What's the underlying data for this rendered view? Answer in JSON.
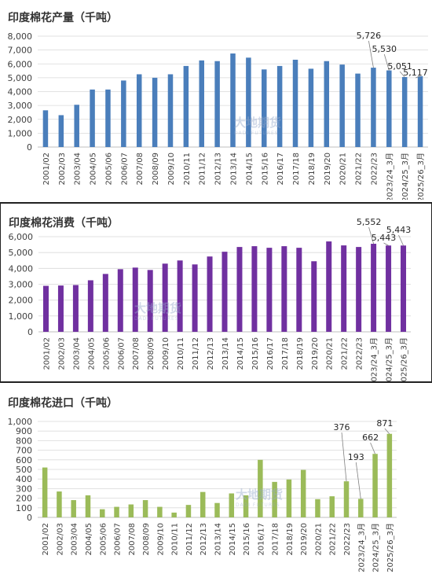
{
  "colors": {
    "production": "#4a7ebb",
    "consumption": "#7030a0",
    "imports": "#9bbb59",
    "grid": "#d9d9d9",
    "text": "#404040"
  },
  "watermark": {
    "text": "大地期货",
    "sub": "DADI FUTURES"
  },
  "chart_data": [
    {
      "type": "bar",
      "title": "印度棉花产量（千吨）",
      "categories": [
        "2001/02",
        "2002/03",
        "2003/04",
        "2004/05",
        "2005/06",
        "2006/07",
        "2007/08",
        "2008/09",
        "2009/10",
        "2010/11",
        "2011/12",
        "2012/13",
        "2013/14",
        "2014/15",
        "2015/16",
        "2016/17",
        "2017/18",
        "2018/19",
        "2019/20",
        "2020/21",
        "2021/22",
        "2022/23",
        "2023/24_3月",
        "2024/25_3月",
        "2025/26_3月"
      ],
      "values": [
        2650,
        2300,
        3050,
        4150,
        4150,
        4800,
        5250,
        5000,
        5250,
        5850,
        6250,
        6200,
        6750,
        6450,
        5600,
        5850,
        6300,
        5650,
        6200,
        5950,
        5300,
        5726,
        5530,
        5051,
        5117
      ],
      "ylim": [
        0,
        8000
      ],
      "yticks": [
        "0",
        "1,000",
        "2,000",
        "3,000",
        "4,000",
        "5,000",
        "6,000",
        "7,000",
        "8,000"
      ],
      "annotations": [
        {
          "index": 21,
          "label": "5,726"
        },
        {
          "index": 22,
          "label": "5,530"
        },
        {
          "index": 23,
          "label": "5,051"
        },
        {
          "index": 24,
          "label": "5,117"
        }
      ],
      "grid": true
    },
    {
      "type": "bar",
      "title": "印度棉花消费（千吨）",
      "categories": [
        "2001/02",
        "2002/03",
        "2003/04",
        "2004/05",
        "2005/06",
        "2006/07",
        "2007/08",
        "2008/09",
        "2009/10",
        "2010/11",
        "2011/12",
        "2012/13",
        "2013/14",
        "2014/15",
        "2015/16",
        "2016/17",
        "2017/18",
        "2018/19",
        "2019/20",
        "2020/21",
        "2021/22",
        "2022/23",
        "2023/24_3月",
        "2024/25_3月",
        "2025/26_3月"
      ],
      "values": [
        2900,
        2920,
        2950,
        3250,
        3650,
        3950,
        4050,
        3900,
        4300,
        4500,
        4250,
        4750,
        5050,
        5350,
        5400,
        5300,
        5400,
        5300,
        4450,
        5700,
        5450,
        5350,
        5552,
        5443,
        5443
      ],
      "ylim": [
        0,
        6000
      ],
      "yticks": [
        "0",
        "1,000",
        "2,000",
        "3,000",
        "4,000",
        "5,000",
        "6,000"
      ],
      "annotations": [
        {
          "index": 22,
          "label": "5,552"
        },
        {
          "index": 23,
          "label": "5,443"
        },
        {
          "index": 24,
          "label": "5,443"
        }
      ],
      "grid": true
    },
    {
      "type": "bar",
      "title": "印度棉花进口（千吨）",
      "categories": [
        "2001/02",
        "2002/03",
        "2003/04",
        "2004/05",
        "2005/06",
        "2006/07",
        "2007/08",
        "2008/09",
        "2009/10",
        "2010/11",
        "2011/12",
        "2012/13",
        "2013/14",
        "2014/15",
        "2015/16",
        "2016/17",
        "2017/18",
        "2018/19",
        "2019/20",
        "2020/21",
        "2021/22",
        "2022/23",
        "2023/24_3月",
        "2024/25_3月",
        "2025/26_3月"
      ],
      "values": [
        520,
        270,
        180,
        230,
        85,
        110,
        135,
        180,
        110,
        50,
        130,
        265,
        150,
        250,
        230,
        600,
        370,
        395,
        495,
        190,
        220,
        376,
        193,
        662,
        871
      ],
      "ylim": [
        0,
        1000
      ],
      "yticks": [
        "0",
        "100",
        "200",
        "300",
        "400",
        "500",
        "600",
        "700",
        "800",
        "900",
        "1,000"
      ],
      "annotations": [
        {
          "index": 21,
          "label": "376"
        },
        {
          "index": 22,
          "label": "193"
        },
        {
          "index": 23,
          "label": "662"
        },
        {
          "index": 24,
          "label": "871"
        }
      ],
      "grid": true
    }
  ]
}
